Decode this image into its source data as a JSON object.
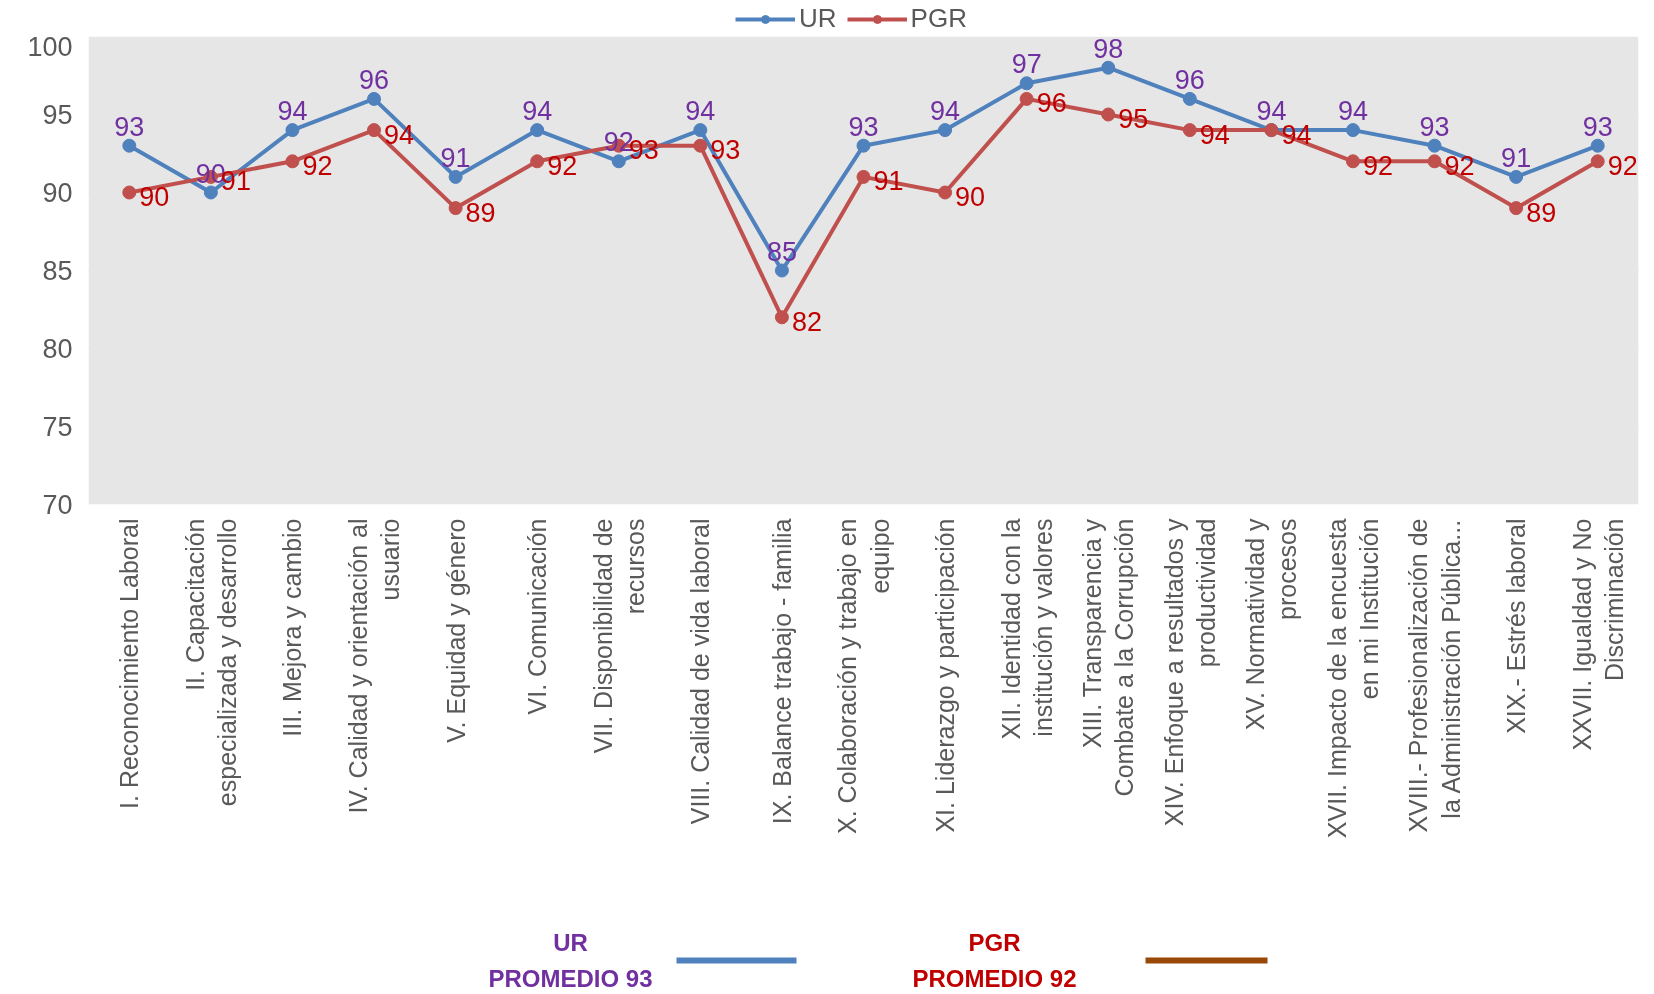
{
  "chart_data": {
    "type": "line",
    "categories": [
      "I. Reconocimiento Laboral",
      "II. Capacitación\nespecializada y desarrollo",
      "III. Mejora y cambio",
      "IV. Calidad y orientación al\nusuario",
      "V. Equidad y género",
      "VI. Comunicación",
      "VII. Disponibilidad de\nrecursos",
      "VIII. Calidad de vida laboral",
      "IX. Balance trabajo - familia",
      "X. Colaboración y trabajo en\nequipo",
      "XI. Liderazgo y participación",
      "XII. Identidad con la\ninstitución y valores",
      "XIII. Transparencia y\nCombate a la Corrupción",
      "XIV. Enfoque a resultados y\nproductividad",
      "XV. Normatividad y\nprocesos",
      "XVII. Impacto de la encuesta\nen mi Institución",
      "XVIII.- Profesionalización de\nla Administración Pública...",
      "XIX.- Estrés laboral",
      "XXVII. Igualdad y No\nDiscriminación"
    ],
    "series": [
      {
        "name": "UR",
        "color": "#4f81bd",
        "values": [
          93,
          90,
          94,
          96,
          91,
          94,
          92,
          94,
          85,
          93,
          94,
          97,
          98,
          96,
          94,
          94,
          93,
          91,
          93
        ]
      },
      {
        "name": "PGR",
        "color": "#c0504d",
        "values": [
          90,
          91,
          92,
          94,
          89,
          92,
          93,
          93,
          82,
          91,
          90,
          96,
          95,
          94,
          94,
          92,
          92,
          89,
          92
        ]
      }
    ],
    "ylim": [
      70,
      100
    ],
    "yticks": [
      70,
      75,
      80,
      85,
      90,
      95,
      100
    ],
    "grid": "y",
    "legend": "top",
    "marker": "circle",
    "data_labels": true,
    "annotations": [
      "UR\nPROMEDIO 93",
      "PGR\nPROMEDIO 92"
    ]
  }
}
